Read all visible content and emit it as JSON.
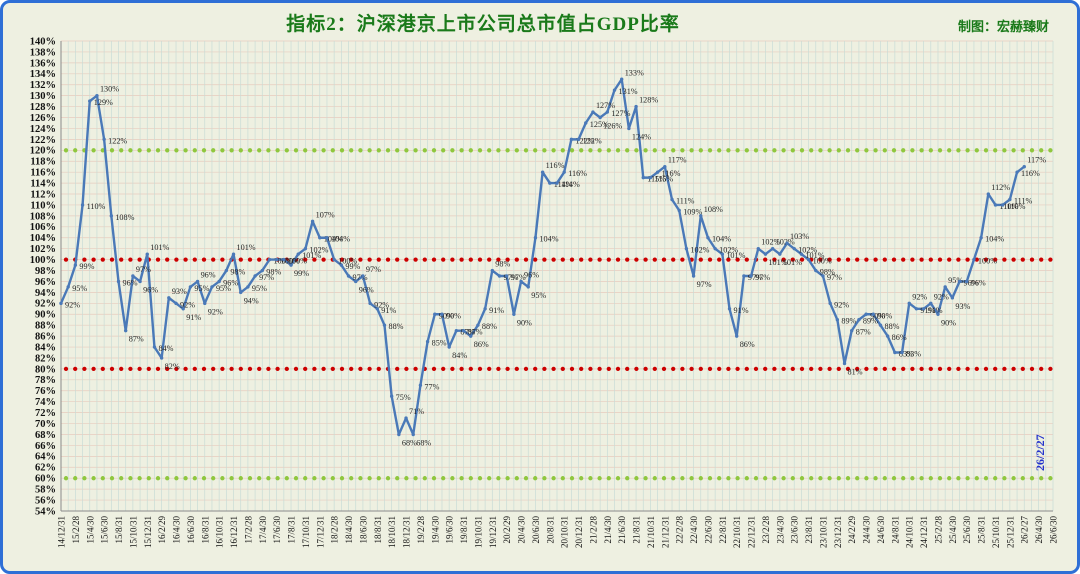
{
  "frame": {
    "credit": "制图：宏赫臻财",
    "annotation": "26/2/27"
  },
  "chart_data": {
    "type": "line",
    "title": "指标2：沪深港京上市公司总市值占GDP比率",
    "series_name": "沪深港京上市公司总市值占GDP比率",
    "unit": "%",
    "grid": "on",
    "legend": "none",
    "ylim": [
      54,
      140
    ],
    "y_tick_step": 2,
    "x_axis_end": "26/6/30",
    "reference_lines": [
      {
        "value": 120,
        "color": "#8fc73e",
        "style": "dotted"
      },
      {
        "value": 100,
        "color": "#cc0000",
        "style": "dotted"
      },
      {
        "value": 80,
        "color": "#cc0000",
        "style": "dotted"
      },
      {
        "value": 60,
        "color": "#8fc73e",
        "style": "dotted"
      }
    ],
    "colors": {
      "line": "#4a79b8",
      "marker": "#4a79b8",
      "grid_vertical": "#c8dcd6",
      "grid_horizontal": "#e7cbbe",
      "data_label": "#262626",
      "axis_label": "#111111",
      "title": "#1a7a1a",
      "background": "#eef0e1",
      "frame_border": "#2e6fd6",
      "annotation": "#2433cc"
    },
    "x_axis_ticks": [
      "14/12/31",
      "15/2/28",
      "15/4/30",
      "15/6/30",
      "15/8/31",
      "15/10/31",
      "15/12/31",
      "16/2/29",
      "16/4/30",
      "16/6/30",
      "16/8/31",
      "16/10/31",
      "16/12/31",
      "17/2/28",
      "17/4/30",
      "17/6/30",
      "17/8/31",
      "17/10/31",
      "17/12/31",
      "18/2/28",
      "18/4/30",
      "18/6/30",
      "18/8/31",
      "18/10/31",
      "18/12/31",
      "19/2/28",
      "19/4/30",
      "19/6/30",
      "19/8/31",
      "19/10/31",
      "19/12/31",
      "20/2/29",
      "20/4/30",
      "20/6/30",
      "20/8/31",
      "20/10/31",
      "20/12/31",
      "21/2/28",
      "21/4/30",
      "21/6/30",
      "21/8/31",
      "21/10/31",
      "21/12/31",
      "22/2/28",
      "22/4/30",
      "22/6/30",
      "22/8/31",
      "22/10/31",
      "22/12/31",
      "23/2/28",
      "23/4/30",
      "23/6/30",
      "23/8/31",
      "23/10/31",
      "23/12/31",
      "24/2/29",
      "24/4/30",
      "24/6/30",
      "24/8/31",
      "24/10/31",
      "24/12/31",
      "25/2/28",
      "25/4/30",
      "25/6/30",
      "25/8/31",
      "25/10/31",
      "25/12/31",
      "26/2/27",
      "26/4/30",
      "26/6/30"
    ],
    "x": [
      "14/12/31",
      "15/1/31",
      "15/2/28",
      "15/3/31",
      "15/4/30",
      "15/5/31",
      "15/6/30",
      "15/7/31",
      "15/8/31",
      "15/9/30",
      "15/10/31",
      "15/11/30",
      "15/12/31",
      "16/1/31",
      "16/2/29",
      "16/3/31",
      "16/4/30",
      "16/5/31",
      "16/6/30",
      "16/7/31",
      "16/8/31",
      "16/9/30",
      "16/10/31",
      "16/11/30",
      "16/12/31",
      "17/1/31",
      "17/2/28",
      "17/3/31",
      "17/4/30",
      "17/5/31",
      "17/6/30",
      "17/7/31",
      "17/8/31",
      "17/9/30",
      "17/10/31",
      "17/11/30",
      "17/12/31",
      "18/1/31",
      "18/2/28",
      "18/3/31",
      "18/4/30",
      "18/5/31",
      "18/6/30",
      "18/7/31",
      "18/8/31",
      "18/9/30",
      "18/10/31",
      "18/11/30",
      "18/12/31",
      "19/1/31",
      "19/2/28",
      "19/3/31",
      "19/4/30",
      "19/5/31",
      "19/6/30",
      "19/7/31",
      "19/8/31",
      "19/9/30",
      "19/10/31",
      "19/11/30",
      "19/12/31",
      "20/1/31",
      "20/2/29",
      "20/3/31",
      "20/4/30",
      "20/5/31",
      "20/6/30",
      "20/7/31",
      "20/8/31",
      "20/9/30",
      "20/10/31",
      "20/11/30",
      "20/12/31",
      "21/1/31",
      "21/2/28",
      "21/3/31",
      "21/4/30",
      "21/5/31",
      "21/6/30",
      "21/7/31",
      "21/8/31",
      "21/9/30",
      "21/10/31",
      "21/11/30",
      "21/12/31",
      "22/1/31",
      "22/2/28",
      "22/3/31",
      "22/4/30",
      "22/5/31",
      "22/6/30",
      "22/7/31",
      "22/8/31",
      "22/9/30",
      "22/10/31",
      "22/11/30",
      "22/12/31",
      "23/1/31",
      "23/2/28",
      "23/3/31",
      "23/4/30",
      "23/5/31",
      "23/6/30",
      "23/7/31",
      "23/8/31",
      "23/9/30",
      "23/10/31",
      "23/11/30",
      "23/12/31",
      "24/1/31",
      "24/2/29",
      "24/3/31",
      "24/4/30",
      "24/5/31",
      "24/6/30",
      "24/7/31",
      "24/8/31",
      "24/9/30",
      "24/10/31",
      "24/11/30",
      "24/12/31",
      "25/1/31",
      "25/2/28",
      "25/3/31",
      "25/4/30",
      "25/5/31",
      "25/6/30",
      "25/7/31",
      "25/8/31",
      "25/9/30",
      "25/10/31",
      "25/11/30",
      "25/12/31",
      "26/1/31",
      "26/2/27"
    ],
    "values": [
      92,
      95,
      99,
      110,
      129,
      130,
      122,
      108,
      96,
      87,
      97,
      96,
      101,
      84,
      82,
      93,
      92,
      91,
      95,
      96,
      92,
      95,
      96,
      98,
      101,
      94,
      95,
      97,
      98,
      100,
      100,
      100,
      99,
      101,
      102,
      107,
      104,
      104,
      100,
      99,
      97,
      96,
      97,
      92,
      91,
      88,
      75,
      68,
      71,
      68,
      77,
      85,
      90,
      90,
      84,
      87,
      87,
      86,
      88,
      91,
      98,
      97,
      97,
      90,
      96,
      95,
      104,
      116,
      114,
      114,
      116,
      122,
      122,
      125,
      127,
      126,
      127,
      131,
      133,
      124,
      128,
      115,
      115,
      116,
      117,
      111,
      109,
      102,
      97,
      108,
      104,
      102,
      101,
      91,
      86,
      97,
      97,
      102,
      101,
      102,
      101,
      103,
      102,
      101,
      100,
      98,
      97,
      92,
      89,
      81,
      87,
      89,
      90,
      90,
      88,
      86,
      83,
      83,
      92,
      91,
      91,
      92,
      90,
      95,
      93,
      96,
      96,
      100,
      104,
      112,
      110,
      110,
      111,
      116,
      117
    ]
  }
}
